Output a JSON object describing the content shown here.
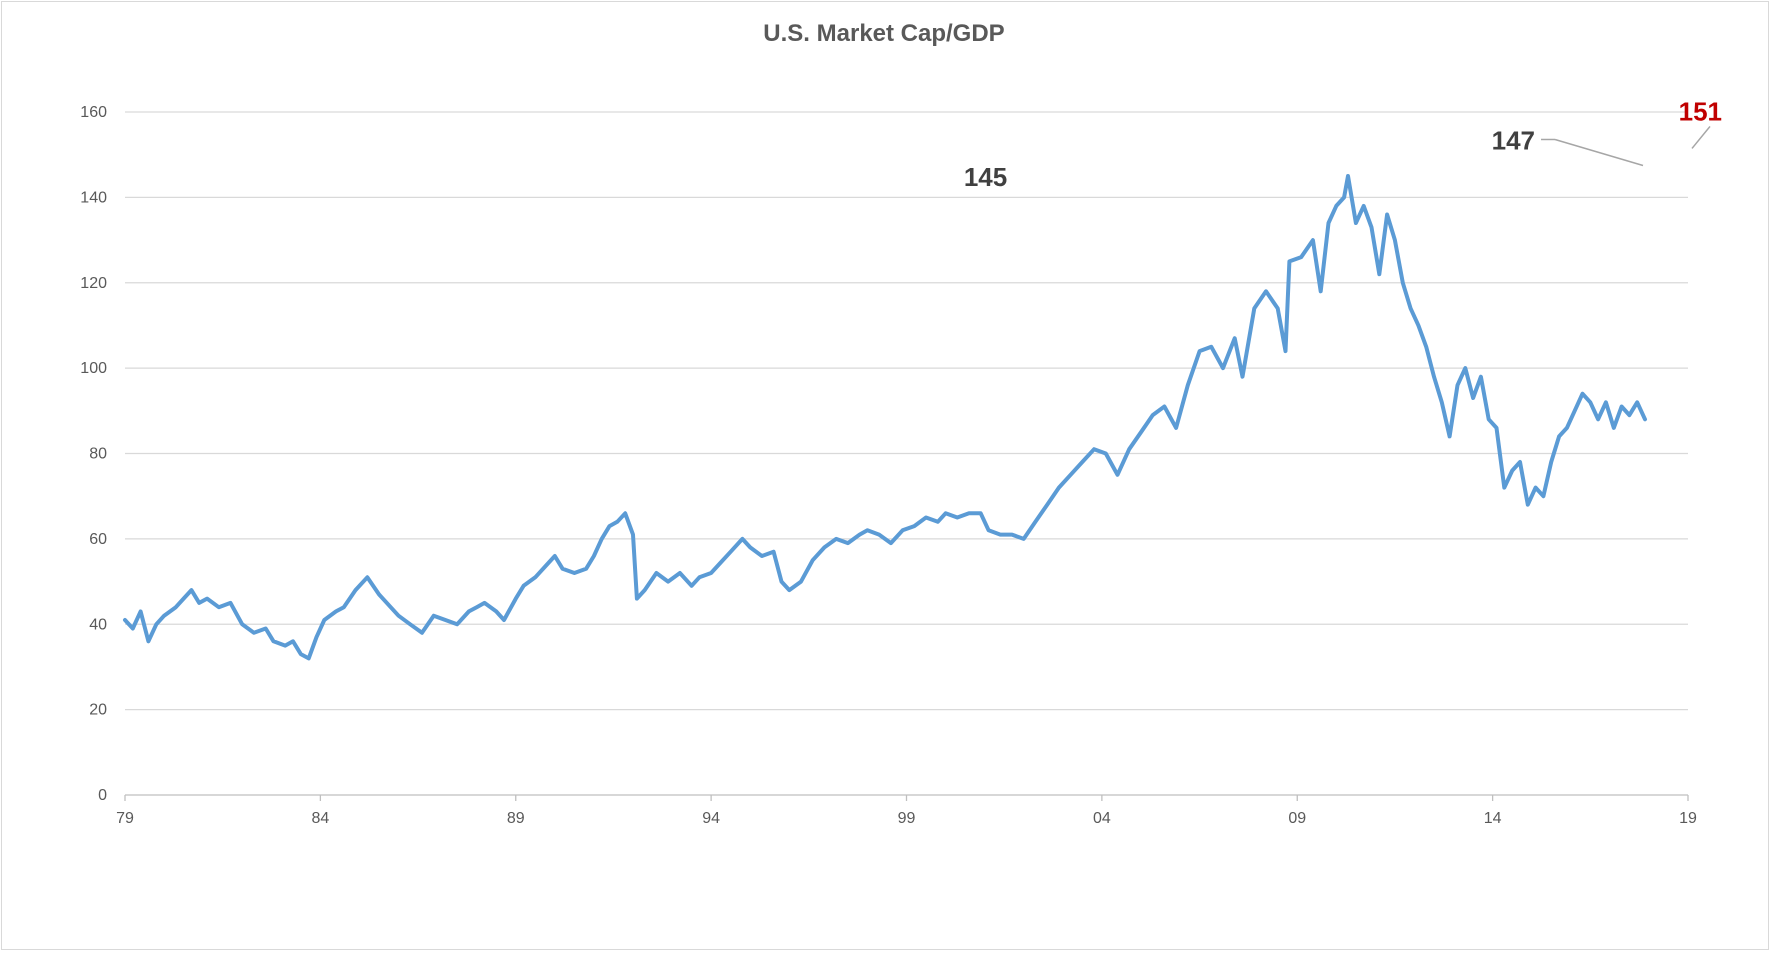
{
  "chart_data": {
    "type": "line",
    "title": "U.S. Market Cap/GDP",
    "xlabel": "",
    "ylabel": "",
    "x_tick_labels": [
      "79",
      "84",
      "89",
      "94",
      "99",
      "04",
      "09",
      "14",
      "19"
    ],
    "y_tick_labels": [
      "0",
      "20",
      "40",
      "60",
      "80",
      "100",
      "120",
      "140",
      "160"
    ],
    "xlim": [
      1979,
      2019
    ],
    "ylim": [
      0,
      160
    ],
    "grid": "horizontal",
    "legend": "none",
    "series": [
      {
        "color": "#5b9bd5",
        "points": [
          [
            1979.0,
            41
          ],
          [
            1979.2,
            39
          ],
          [
            1979.4,
            43
          ],
          [
            1979.6,
            36
          ],
          [
            1979.8,
            40
          ],
          [
            1980.0,
            42
          ],
          [
            1980.3,
            44
          ],
          [
            1980.5,
            46
          ],
          [
            1980.7,
            48
          ],
          [
            1980.9,
            45
          ],
          [
            1981.1,
            46
          ],
          [
            1981.4,
            44
          ],
          [
            1981.7,
            45
          ],
          [
            1982.0,
            40
          ],
          [
            1982.3,
            38
          ],
          [
            1982.6,
            39
          ],
          [
            1982.8,
            36
          ],
          [
            1983.1,
            35
          ],
          [
            1983.3,
            36
          ],
          [
            1983.5,
            33
          ],
          [
            1983.7,
            32
          ],
          [
            1983.9,
            37
          ],
          [
            1984.1,
            41
          ],
          [
            1984.4,
            43
          ],
          [
            1984.6,
            44
          ],
          [
            1984.9,
            48
          ],
          [
            1985.2,
            51
          ],
          [
            1985.5,
            47
          ],
          [
            1985.8,
            44
          ],
          [
            1986.0,
            42
          ],
          [
            1986.3,
            40
          ],
          [
            1986.6,
            38
          ],
          [
            1986.9,
            42
          ],
          [
            1987.2,
            41
          ],
          [
            1987.5,
            40
          ],
          [
            1987.8,
            43
          ],
          [
            1988.0,
            44
          ],
          [
            1988.2,
            45
          ],
          [
            1988.5,
            43
          ],
          [
            1988.7,
            41
          ],
          [
            1989.0,
            46
          ],
          [
            1989.2,
            49
          ],
          [
            1989.5,
            51
          ],
          [
            1989.8,
            54
          ],
          [
            1990.0,
            56
          ],
          [
            1990.2,
            53
          ],
          [
            1990.5,
            52
          ],
          [
            1990.8,
            53
          ],
          [
            1991.0,
            56
          ],
          [
            1991.2,
            60
          ],
          [
            1991.4,
            63
          ],
          [
            1991.6,
            64
          ],
          [
            1991.8,
            66
          ],
          [
            1992.0,
            61
          ],
          [
            1992.1,
            46
          ],
          [
            1992.3,
            48
          ],
          [
            1992.6,
            52
          ],
          [
            1992.9,
            50
          ],
          [
            1993.2,
            52
          ],
          [
            1993.5,
            49
          ],
          [
            1993.7,
            51
          ],
          [
            1994.0,
            52
          ],
          [
            1994.2,
            54
          ],
          [
            1994.5,
            57
          ],
          [
            1994.8,
            60
          ],
          [
            1995.0,
            58
          ],
          [
            1995.3,
            56
          ],
          [
            1995.6,
            57
          ],
          [
            1995.8,
            50
          ],
          [
            1996.0,
            48
          ],
          [
            1996.3,
            50
          ],
          [
            1996.6,
            55
          ],
          [
            1996.9,
            58
          ],
          [
            1997.2,
            60
          ],
          [
            1997.5,
            59
          ],
          [
            1997.8,
            61
          ],
          [
            1998.0,
            62
          ],
          [
            1998.3,
            61
          ],
          [
            1998.6,
            59
          ],
          [
            1998.9,
            62
          ],
          [
            1999.2,
            63
          ],
          [
            1999.5,
            65
          ],
          [
            1999.8,
            64
          ],
          [
            2000.0,
            66
          ],
          [
            2000.3,
            65
          ],
          [
            2000.6,
            66
          ],
          [
            2000.9,
            66
          ],
          [
            2001.1,
            62
          ],
          [
            2001.4,
            61
          ],
          [
            2001.7,
            61
          ],
          [
            2002.0,
            60
          ],
          [
            2002.3,
            64
          ],
          [
            2002.6,
            68
          ],
          [
            2002.9,
            72
          ],
          [
            2003.2,
            75
          ],
          [
            2003.5,
            78
          ],
          [
            2003.8,
            81
          ],
          [
            2004.1,
            80
          ],
          [
            2004.4,
            75
          ],
          [
            2004.7,
            81
          ],
          [
            2005.0,
            85
          ],
          [
            2005.3,
            89
          ],
          [
            2005.6,
            91
          ],
          [
            2005.9,
            86
          ],
          [
            2006.2,
            96
          ],
          [
            2006.5,
            104
          ],
          [
            2006.8,
            105
          ],
          [
            2007.1,
            100
          ],
          [
            2007.4,
            107
          ],
          [
            2007.6,
            98
          ],
          [
            2007.9,
            114
          ],
          [
            2008.2,
            118
          ],
          [
            2008.5,
            114
          ],
          [
            2008.7,
            104
          ],
          [
            2008.8,
            125
          ],
          [
            2009.1,
            126
          ],
          [
            2009.4,
            130
          ],
          [
            2009.6,
            118
          ],
          [
            2009.8,
            134
          ],
          [
            2010.0,
            138
          ],
          [
            2010.2,
            140
          ],
          [
            2010.3,
            145
          ],
          [
            2010.5,
            134
          ],
          [
            2010.7,
            138
          ],
          [
            2010.9,
            133
          ],
          [
            2011.1,
            122
          ],
          [
            2011.3,
            136
          ],
          [
            2011.5,
            130
          ],
          [
            2011.7,
            120
          ],
          [
            2011.9,
            114
          ],
          [
            2012.1,
            110
          ],
          [
            2012.3,
            105
          ],
          [
            2012.5,
            98
          ],
          [
            2012.7,
            92
          ],
          [
            2012.9,
            84
          ],
          [
            2013.1,
            96
          ],
          [
            2013.3,
            100
          ],
          [
            2013.5,
            93
          ],
          [
            2013.7,
            98
          ],
          [
            2013.9,
            88
          ],
          [
            2014.1,
            86
          ],
          [
            2014.3,
            72
          ],
          [
            2014.5,
            76
          ],
          [
            2014.7,
            78
          ],
          [
            2014.9,
            68
          ],
          [
            2015.1,
            72
          ],
          [
            2015.3,
            70
          ],
          [
            2015.5,
            78
          ],
          [
            2015.7,
            84
          ],
          [
            2015.9,
            86
          ],
          [
            2016.1,
            90
          ],
          [
            2016.3,
            94
          ],
          [
            2016.5,
            92
          ],
          [
            2016.7,
            88
          ],
          [
            2016.9,
            92
          ],
          [
            2017.1,
            86
          ],
          [
            2017.3,
            91
          ],
          [
            2017.5,
            89
          ],
          [
            2017.7,
            92
          ],
          [
            2017.9,
            88
          ]
        ]
      }
    ],
    "annotations": [
      {
        "text": "145",
        "x": 1999.7,
        "y": 145,
        "highlight": false,
        "leader": false
      },
      {
        "text": "147",
        "x": 2017.9,
        "y": 147,
        "highlight": false,
        "leader": true
      },
      {
        "text": "151",
        "x": 2019.0,
        "y": 151,
        "highlight": true,
        "leader": true
      }
    ]
  }
}
